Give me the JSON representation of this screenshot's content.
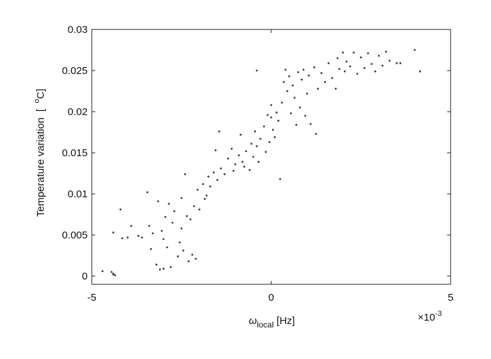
{
  "chart_data": {
    "type": "scatter",
    "xlabel": {
      "symbol": "ω",
      "subscript": "local",
      "unit": " [Hz]"
    },
    "ylabel": {
      "text": "Temperature variation  [  ",
      "superscript": "o",
      "unit": "C]"
    },
    "x_multiplier": {
      "base": "×10",
      "exponent": "-3"
    },
    "xlim": [
      -5,
      5
    ],
    "xticks": [
      -5,
      0,
      5
    ],
    "ylim": [
      -0.001,
      0.03
    ],
    "yticks": [
      0,
      0.005,
      0.01,
      0.015,
      0.02,
      0.025,
      0.03
    ],
    "color": "#3a3a3a",
    "x": [
      -4.7,
      -4.4,
      -4.35,
      -4.4,
      -4.45,
      -4.4,
      -4.2,
      -4.15,
      -4.0,
      -3.9,
      -3.7,
      -3.6,
      -3.45,
      -3.4,
      -3.35,
      -3.3,
      -3.2,
      -3.15,
      -3.1,
      -3.05,
      -3.0,
      -3.0,
      -2.95,
      -2.9,
      -2.85,
      -2.8,
      -2.75,
      -2.7,
      -2.6,
      -2.55,
      -2.5,
      -2.5,
      -2.45,
      -2.4,
      -2.35,
      -2.3,
      -2.25,
      -2.2,
      -2.15,
      -2.1,
      -2.05,
      -2.0,
      -1.9,
      -1.85,
      -1.8,
      -1.75,
      -1.7,
      -1.6,
      -1.55,
      -1.5,
      -1.45,
      -1.4,
      -1.3,
      -1.2,
      -1.1,
      -1.05,
      -1.0,
      -0.9,
      -0.85,
      -0.8,
      -0.75,
      -0.7,
      -0.6,
      -0.55,
      -0.5,
      -0.45,
      -0.4,
      -0.35,
      -0.3,
      -0.2,
      -0.15,
      -0.1,
      -0.05,
      0.0,
      0.05,
      0.1,
      0.15,
      0.2,
      0.25,
      0.3,
      0.35,
      0.4,
      0.45,
      0.5,
      0.55,
      0.6,
      0.65,
      0.7,
      0.75,
      0.8,
      0.85,
      0.9,
      0.95,
      1.0,
      1.05,
      1.1,
      1.2,
      1.25,
      1.3,
      1.4,
      1.5,
      1.6,
      1.7,
      1.8,
      1.85,
      1.9,
      2.0,
      2.05,
      2.1,
      2.2,
      2.3,
      2.4,
      2.5,
      2.6,
      2.7,
      2.8,
      2.9,
      3.0,
      3.1,
      3.2,
      3.3,
      3.5,
      3.6,
      4.0,
      4.15,
      -0.4,
      0.0
    ],
    "values": [
      0.0006,
      0.0003,
      0.0001,
      0.0002,
      0.0005,
      0.0053,
      0.0081,
      0.0046,
      0.0047,
      0.0061,
      0.0049,
      0.0047,
      0.0102,
      0.0061,
      0.0033,
      0.0052,
      0.0014,
      0.0091,
      0.0008,
      0.0055,
      0.0045,
      0.0009,
      0.0072,
      0.0035,
      0.0088,
      0.0011,
      0.0065,
      0.0079,
      0.0024,
      0.0041,
      0.0058,
      0.0095,
      0.0031,
      0.0124,
      0.0073,
      0.0018,
      0.0069,
      0.0026,
      0.0085,
      0.0021,
      0.0105,
      0.0081,
      0.0112,
      0.0094,
      0.0098,
      0.0121,
      0.0109,
      0.0126,
      0.0153,
      0.0117,
      0.0176,
      0.0131,
      0.0124,
      0.0143,
      0.0155,
      0.0128,
      0.0136,
      0.0147,
      0.0172,
      0.0139,
      0.0133,
      0.0152,
      0.0129,
      0.0161,
      0.0145,
      0.0176,
      0.0158,
      0.0139,
      0.0167,
      0.0182,
      0.0151,
      0.0196,
      0.0163,
      0.0208,
      0.0178,
      0.0169,
      0.0199,
      0.0189,
      0.0118,
      0.0211,
      0.0236,
      0.0251,
      0.0225,
      0.0243,
      0.0198,
      0.0232,
      0.0217,
      0.0184,
      0.0248,
      0.0205,
      0.0239,
      0.0251,
      0.0195,
      0.0222,
      0.0244,
      0.0185,
      0.0254,
      0.0173,
      0.0228,
      0.0247,
      0.0236,
      0.0259,
      0.0241,
      0.0228,
      0.0265,
      0.0252,
      0.0272,
      0.0249,
      0.0261,
      0.0255,
      0.0272,
      0.0246,
      0.0266,
      0.0253,
      0.0271,
      0.0258,
      0.0249,
      0.0268,
      0.0256,
      0.0273,
      0.0262,
      0.0259,
      0.0259,
      0.0275,
      0.0249,
      0.025,
      0.0193
    ]
  }
}
